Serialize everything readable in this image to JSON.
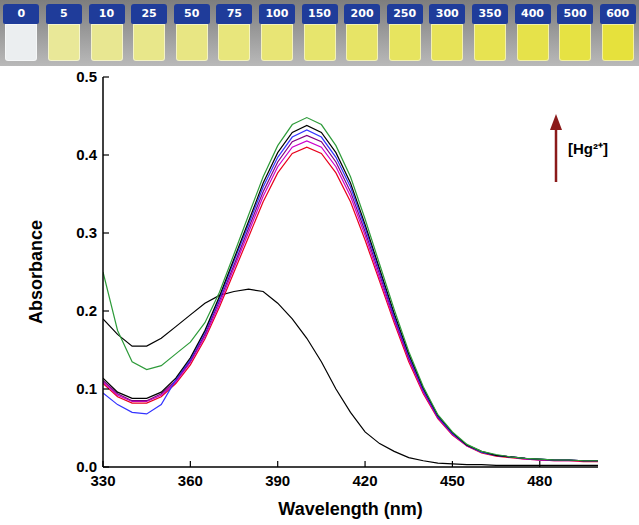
{
  "photo": {
    "vial_labels": [
      "0",
      "5",
      "10",
      "25",
      "50",
      "75",
      "100",
      "150",
      "200",
      "250",
      "300",
      "350",
      "400",
      "500",
      "600"
    ]
  },
  "chart_data": {
    "type": "line",
    "x_label": "Wavelength (nm)",
    "y_label": "Absorbance",
    "annotation": "[Hg²⁺]",
    "x": [
      330,
      335,
      340,
      345,
      350,
      355,
      360,
      365,
      370,
      375,
      380,
      385,
      390,
      395,
      400,
      405,
      410,
      415,
      420,
      425,
      430,
      435,
      440,
      445,
      450,
      455,
      460,
      465,
      470,
      475,
      480,
      485,
      490,
      495,
      500
    ],
    "xlim": [
      330,
      500
    ],
    "xticks": [
      330,
      360,
      390,
      420,
      450,
      480
    ],
    "ylim": [
      0,
      0.5
    ],
    "yticks": [
      {
        "value": 0,
        "label": "0.0"
      },
      {
        "value": 0.1,
        "label": "0.1"
      },
      {
        "value": 0.2,
        "label": "0.2"
      },
      {
        "value": 0.3,
        "label": "0.3"
      },
      {
        "value": 0.4,
        "label": "0.4"
      },
      {
        "value": 0.5,
        "label": "0.5"
      }
    ],
    "series": [
      {
        "color": "#000000",
        "values": [
          0.19,
          0.17,
          0.155,
          0.155,
          0.165,
          0.18,
          0.195,
          0.21,
          0.22,
          0.225,
          0.228,
          0.225,
          0.21,
          0.19,
          0.165,
          0.135,
          0.1,
          0.07,
          0.045,
          0.03,
          0.02,
          0.012,
          0.008,
          0.005,
          0.004,
          0.003,
          0.003,
          0.002,
          0.002,
          0.002,
          0.002,
          0.002,
          0.002,
          0.002,
          0.002
        ]
      },
      {
        "color": "#e8001c",
        "values": [
          0.107,
          0.09,
          0.082,
          0.082,
          0.09,
          0.107,
          0.131,
          0.164,
          0.205,
          0.25,
          0.295,
          0.34,
          0.377,
          0.402,
          0.41,
          0.402,
          0.377,
          0.34,
          0.291,
          0.238,
          0.185,
          0.135,
          0.094,
          0.062,
          0.041,
          0.027,
          0.018,
          0.014,
          0.012,
          0.01,
          0.009,
          0.008,
          0.008,
          0.007,
          0.007
        ]
      },
      {
        "color": "#cc00cc",
        "values": [
          0.109,
          0.092,
          0.084,
          0.084,
          0.092,
          0.109,
          0.134,
          0.167,
          0.209,
          0.255,
          0.301,
          0.347,
          0.385,
          0.41,
          0.418,
          0.41,
          0.385,
          0.347,
          0.297,
          0.242,
          0.188,
          0.138,
          0.096,
          0.063,
          0.042,
          0.027,
          0.019,
          0.015,
          0.013,
          0.01,
          0.009,
          0.008,
          0.008,
          0.008,
          0.008
        ]
      },
      {
        "color": "#800080",
        "values": [
          0.111,
          0.094,
          0.085,
          0.085,
          0.094,
          0.111,
          0.136,
          0.17,
          0.213,
          0.259,
          0.306,
          0.353,
          0.391,
          0.417,
          0.425,
          0.417,
          0.391,
          0.353,
          0.302,
          0.247,
          0.191,
          0.14,
          0.098,
          0.064,
          0.043,
          0.028,
          0.019,
          0.015,
          0.013,
          0.011,
          0.009,
          0.009,
          0.009,
          0.008,
          0.008
        ]
      },
      {
        "color": "#3333ff",
        "values": [
          0.095,
          0.08,
          0.07,
          0.068,
          0.08,
          0.112,
          0.138,
          0.173,
          0.216,
          0.264,
          0.311,
          0.359,
          0.397,
          0.423,
          0.432,
          0.423,
          0.397,
          0.359,
          0.307,
          0.251,
          0.194,
          0.143,
          0.099,
          0.065,
          0.043,
          0.028,
          0.019,
          0.015,
          0.013,
          0.011,
          0.01,
          0.009,
          0.009,
          0.008,
          0.008
        ]
      },
      {
        "color": "#000000",
        "values": [
          0.114,
          0.096,
          0.088,
          0.088,
          0.096,
          0.114,
          0.14,
          0.175,
          0.219,
          0.267,
          0.315,
          0.364,
          0.403,
          0.429,
          0.438,
          0.429,
          0.403,
          0.364,
          0.311,
          0.254,
          0.197,
          0.145,
          0.101,
          0.066,
          0.044,
          0.028,
          0.02,
          0.015,
          0.013,
          0.011,
          0.01,
          0.009,
          0.009,
          0.008,
          0.008
        ]
      },
      {
        "color": "#2e9b3a",
        "values": [
          0.25,
          0.175,
          0.135,
          0.125,
          0.13,
          0.145,
          0.16,
          0.185,
          0.224,
          0.273,
          0.323,
          0.372,
          0.412,
          0.439,
          0.448,
          0.439,
          0.412,
          0.372,
          0.318,
          0.26,
          0.202,
          0.148,
          0.103,
          0.067,
          0.045,
          0.029,
          0.02,
          0.016,
          0.013,
          0.011,
          0.01,
          0.009,
          0.009,
          0.008,
          0.008
        ]
      }
    ]
  }
}
